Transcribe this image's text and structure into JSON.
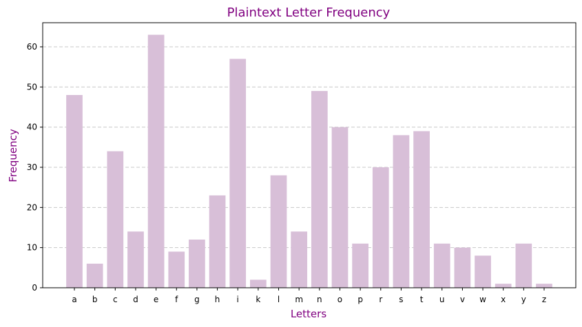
{
  "chart_data": {
    "type": "bar",
    "title": "Plaintext Letter Frequency",
    "xlabel": "Letters",
    "ylabel": "Frequency",
    "categories": [
      "a",
      "b",
      "c",
      "d",
      "e",
      "f",
      "g",
      "h",
      "i",
      "k",
      "l",
      "m",
      "n",
      "o",
      "p",
      "r",
      "s",
      "t",
      "u",
      "v",
      "w",
      "x",
      "y",
      "z"
    ],
    "values": [
      48,
      6,
      34,
      14,
      63,
      9,
      12,
      23,
      57,
      2,
      28,
      14,
      49,
      40,
      11,
      30,
      38,
      39,
      11,
      10,
      8,
      1,
      11,
      1
    ],
    "ylim": [
      0,
      66
    ],
    "yticks": [
      0,
      10,
      20,
      30,
      40,
      50,
      60
    ],
    "grid": "y-dashed",
    "legend": "none",
    "colors": {
      "bar": "#d8bfd8",
      "title": "#800080",
      "axis_label": "#800080",
      "grid": "#c8c8c8"
    }
  }
}
